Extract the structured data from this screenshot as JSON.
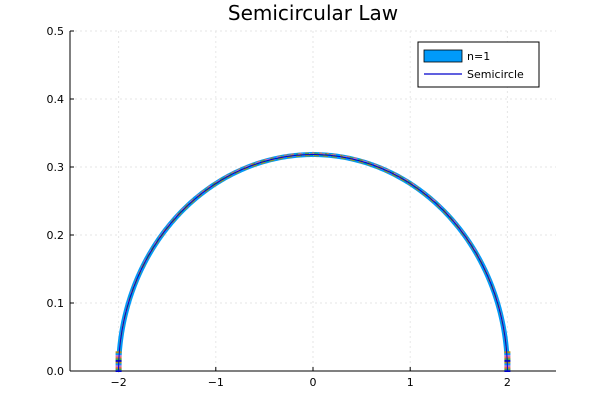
{
  "chart_data": {
    "type": "line",
    "title": "Semicircular Law",
    "xlabel": "",
    "ylabel": "",
    "xlim": [
      -2.5,
      2.5
    ],
    "ylim": [
      0.0,
      0.5
    ],
    "x_ticks": [
      -2,
      -1,
      0,
      1,
      2
    ],
    "x_tick_labels": [
      "−2",
      "−1",
      "0",
      "1",
      "2"
    ],
    "y_ticks": [
      0.0,
      0.1,
      0.2,
      0.3,
      0.4,
      0.5
    ],
    "y_tick_labels": [
      "0.0",
      "0.1",
      "0.2",
      "0.3",
      "0.4",
      "0.5"
    ],
    "grid": true,
    "legend_position": "top-right",
    "series": [
      {
        "name": "n=1",
        "kind": "histogram",
        "color": "#009af9"
      },
      {
        "name": "Semicircle",
        "kind": "line",
        "color": "#0000cc",
        "function": "semicircle density sqrt(4 - x^2) / (2*pi)",
        "domain": [
          -2,
          2
        ]
      }
    ],
    "overlay_colors": [
      "#e26f46",
      "#3da44d",
      "#c271d2",
      "#ac8d18",
      "#00a9ad",
      "#ed5e93",
      "#c68225",
      "#00a98d",
      "#8e971e"
    ]
  }
}
